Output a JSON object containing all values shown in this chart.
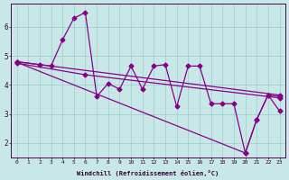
{
  "xlabel": "Windchill (Refroidissement éolien,°C)",
  "bg_color": "#c8e8e8",
  "line_color": "#880088",
  "markersize": 2.5,
  "linewidth": 0.9,
  "xlim": [
    -0.5,
    23.5
  ],
  "ylim": [
    1.5,
    6.8
  ],
  "yticks": [
    2,
    3,
    4,
    5,
    6
  ],
  "xticks": [
    0,
    1,
    2,
    3,
    4,
    5,
    6,
    7,
    8,
    9,
    10,
    11,
    12,
    13,
    14,
    15,
    16,
    17,
    18,
    19,
    20,
    21,
    22,
    23
  ],
  "series1_x": [
    0,
    2,
    3,
    4,
    5,
    6,
    7,
    8,
    9,
    10,
    11,
    12,
    13,
    14,
    15,
    16,
    17,
    18,
    19,
    20,
    21,
    22,
    23
  ],
  "series1_y": [
    4.8,
    4.7,
    4.65,
    5.55,
    6.3,
    6.5,
    3.6,
    4.05,
    3.85,
    4.65,
    3.85,
    4.65,
    4.7,
    3.25,
    4.65,
    4.65,
    3.35,
    3.35,
    3.35,
    1.65,
    2.8,
    3.65,
    3.1
  ],
  "series2_x": [
    0,
    23
  ],
  "series2_y": [
    4.8,
    3.65
  ],
  "series3_x": [
    0,
    6,
    23
  ],
  "series3_y": [
    4.75,
    4.35,
    3.55
  ],
  "series4_x": [
    0,
    20,
    21,
    22,
    23
  ],
  "series4_y": [
    4.78,
    1.65,
    2.8,
    3.65,
    3.6
  ]
}
